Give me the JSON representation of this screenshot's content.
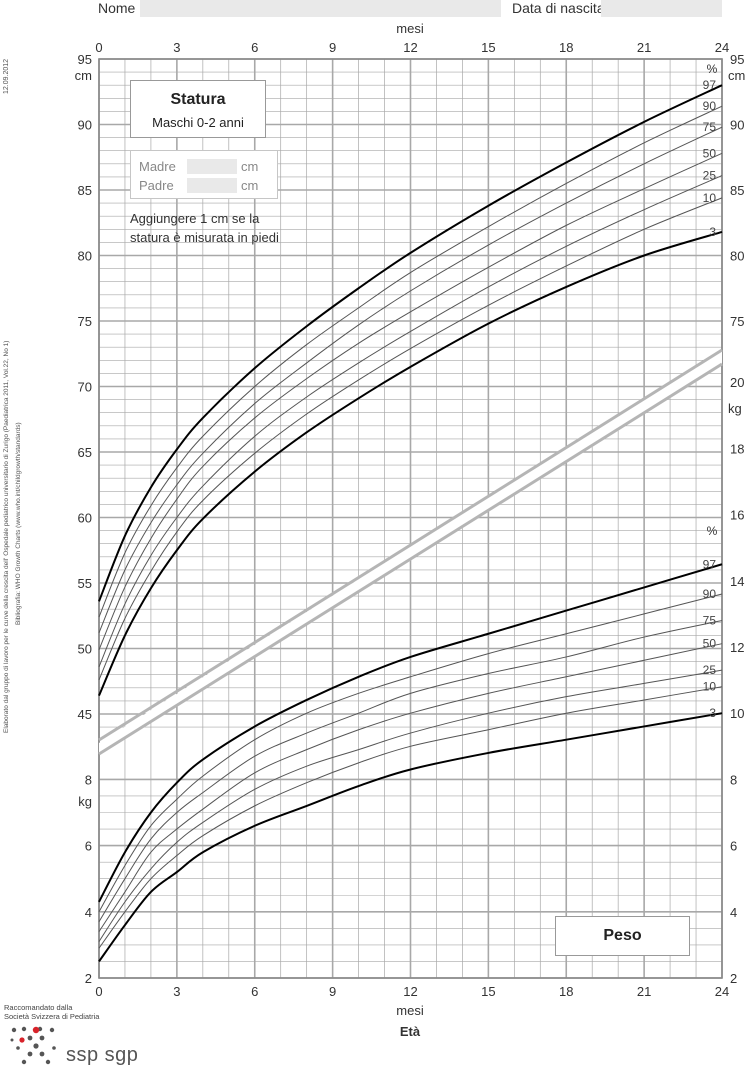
{
  "header": {
    "name_label": "Nome",
    "birth_label": "Data di nascita"
  },
  "sidebar": {
    "date": "12.09.2012",
    "credit_line1": "Elaborato dal gruppo di lavoro per le curve della crescita dell' Ospedale pediatrico universitario di Zurigo (Paediatrica 2011, Vol.22, No 1)",
    "credit_line2": "Bibliografia: WHO Growth Charts (www.who.int/childgrowth/standards)"
  },
  "stature_box": {
    "title": "Statura",
    "subtitle": "Maschi 0-2 anni"
  },
  "parents": {
    "mother_label": "Madre",
    "father_label": "Padre",
    "unit": "cm"
  },
  "note": {
    "line1": "Aggiungere 1 cm se la",
    "line2": "statura è misurata in piedi"
  },
  "weight_box": {
    "title": "Peso"
  },
  "footer": {
    "recommended_line1": "Raccomandato dalla",
    "recommended_line2": "Società Svizzera di Pediatria",
    "logo_text": "ssp sgp"
  },
  "chart_data": {
    "type": "line",
    "x_label_top": "mesi",
    "x_label_bottom": "mesi",
    "x_title": "Età",
    "x_ticks": [
      "0",
      "3",
      "6",
      "9",
      "12",
      "15",
      "18",
      "21",
      "24"
    ],
    "xlim": [
      0,
      24
    ],
    "height_axis": {
      "unit": "cm",
      "ylim": [
        40,
        95
      ],
      "ticks": [
        "45",
        "50",
        "55",
        "60",
        "65",
        "70",
        "75",
        "80",
        "85",
        "90",
        "95"
      ],
      "right_ticks": [
        "75",
        "80",
        "85",
        "90",
        "95"
      ]
    },
    "weight_axis": {
      "unit": "kg",
      "left_ticks": [
        "2",
        "4",
        "6",
        "8"
      ],
      "right_ticks": [
        "2",
        "4",
        "6",
        "8",
        "10",
        "12",
        "14",
        "16",
        "18",
        "20"
      ]
    },
    "percentile_header": "%",
    "percentile_labels": [
      "97",
      "90",
      "75",
      "50",
      "25",
      "10",
      "3"
    ],
    "height_series": [
      {
        "name": "97",
        "x": [
          0,
          1,
          2,
          3,
          4,
          6,
          8,
          10,
          12,
          15,
          18,
          21,
          24
        ],
        "values": [
          53.6,
          58.6,
          62.3,
          65.2,
          67.6,
          71.4,
          74.6,
          77.5,
          80.2,
          83.8,
          87.1,
          90.2,
          93.0
        ]
      },
      {
        "name": "90",
        "x": [
          0,
          1,
          2,
          3,
          4,
          6,
          8,
          10,
          12,
          15,
          18,
          21,
          24
        ],
        "values": [
          52.4,
          57.3,
          60.9,
          63.8,
          66.2,
          70.0,
          73.2,
          76.0,
          78.7,
          82.2,
          85.5,
          88.6,
          91.4
        ]
      },
      {
        "name": "75",
        "x": [
          0,
          1,
          2,
          3,
          4,
          6,
          8,
          10,
          12,
          15,
          18,
          21,
          24
        ],
        "values": [
          51.2,
          56.0,
          59.6,
          62.5,
          64.9,
          68.7,
          71.8,
          74.7,
          77.3,
          80.8,
          84.0,
          87.0,
          89.8
        ]
      },
      {
        "name": "50",
        "x": [
          0,
          1,
          2,
          3,
          4,
          6,
          8,
          10,
          12,
          15,
          18,
          21,
          24
        ],
        "values": [
          49.9,
          54.7,
          58.4,
          61.4,
          63.9,
          67.6,
          70.6,
          73.3,
          75.7,
          79.1,
          82.3,
          85.1,
          87.8
        ]
      },
      {
        "name": "25",
        "x": [
          0,
          1,
          2,
          3,
          4,
          6,
          8,
          10,
          12,
          15,
          18,
          21,
          24
        ],
        "values": [
          48.6,
          53.4,
          57.1,
          60.0,
          62.4,
          66.2,
          69.2,
          71.8,
          74.2,
          77.6,
          80.7,
          83.5,
          86.1
        ]
      },
      {
        "name": "10",
        "x": [
          0,
          1,
          2,
          3,
          4,
          6,
          8,
          10,
          12,
          15,
          18,
          21,
          24
        ],
        "values": [
          47.6,
          52.3,
          55.9,
          58.9,
          61.3,
          64.9,
          67.9,
          70.5,
          72.9,
          76.2,
          79.2,
          82.0,
          84.4
        ]
      },
      {
        "name": "3",
        "x": [
          0,
          1,
          2,
          3,
          4,
          6,
          8,
          10,
          12,
          15,
          18,
          21,
          24
        ],
        "values": [
          46.4,
          51.0,
          54.6,
          57.5,
          59.9,
          63.5,
          66.5,
          69.1,
          71.5,
          74.8,
          77.6,
          80.0,
          81.8
        ]
      }
    ],
    "weight_series": [
      {
        "name": "97",
        "x": [
          0,
          1,
          2,
          3,
          4,
          6,
          8,
          10,
          12,
          15,
          18,
          21,
          24
        ],
        "values": [
          4.3,
          5.8,
          7.0,
          7.9,
          8.6,
          9.6,
          10.4,
          11.1,
          11.7,
          12.4,
          13.1,
          13.8,
          14.5
        ]
      },
      {
        "name": "90",
        "x": [
          0,
          1,
          2,
          3,
          4,
          6,
          8,
          10,
          12,
          15,
          18,
          21,
          24
        ],
        "values": [
          4.0,
          5.4,
          6.6,
          7.4,
          8.1,
          9.2,
          10.0,
          10.6,
          11.1,
          11.8,
          12.4,
          13.0,
          13.6
        ]
      },
      {
        "name": "75",
        "x": [
          0,
          1,
          2,
          3,
          4,
          6,
          8,
          10,
          12,
          15,
          18,
          21,
          24
        ],
        "values": [
          3.7,
          5.0,
          6.2,
          7.0,
          7.6,
          8.7,
          9.4,
          10.0,
          10.6,
          11.2,
          11.7,
          12.3,
          12.8
        ]
      },
      {
        "name": "50",
        "x": [
          0,
          1,
          2,
          3,
          4,
          6,
          8,
          10,
          12,
          15,
          18,
          21,
          24
        ],
        "values": [
          3.4,
          4.6,
          5.8,
          6.5,
          7.1,
          8.2,
          8.9,
          9.5,
          10.0,
          10.6,
          11.1,
          11.6,
          12.1
        ]
      },
      {
        "name": "25",
        "x": [
          0,
          1,
          2,
          3,
          4,
          6,
          8,
          10,
          12,
          15,
          18,
          21,
          24
        ],
        "values": [
          3.1,
          4.3,
          5.3,
          6.1,
          6.7,
          7.7,
          8.4,
          8.9,
          9.4,
          10.0,
          10.5,
          10.9,
          11.3
        ]
      },
      {
        "name": "10",
        "x": [
          0,
          1,
          2,
          3,
          4,
          6,
          8,
          10,
          12,
          15,
          18,
          21,
          24
        ],
        "values": [
          2.9,
          4.0,
          5.0,
          5.7,
          6.3,
          7.2,
          7.9,
          8.5,
          9.0,
          9.5,
          10.0,
          10.4,
          10.8
        ]
      },
      {
        "name": "3",
        "x": [
          0,
          1,
          2,
          3,
          4,
          6,
          8,
          10,
          12,
          15,
          18,
          21,
          24
        ],
        "values": [
          2.5,
          3.6,
          4.6,
          5.2,
          5.8,
          6.6,
          7.2,
          7.8,
          8.3,
          8.8,
          9.2,
          9.6,
          10.0
        ]
      }
    ],
    "colors": {
      "grid": "#a8a8a8",
      "curve_outer": "#000000",
      "curve_inner": "#555555",
      "separator": "#b5b5b5"
    }
  }
}
